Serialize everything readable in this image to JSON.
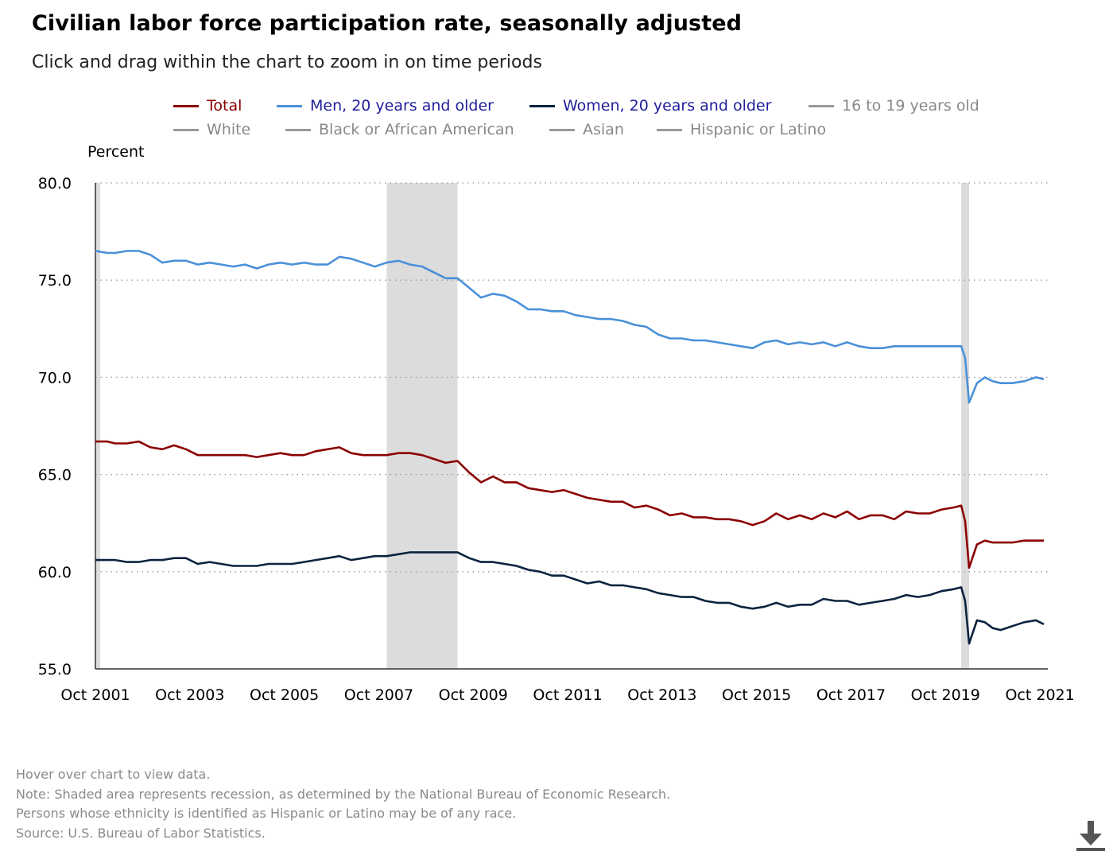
{
  "title": "Civilian labor force participation rate, seasonally adjusted",
  "subtitle": "Click and drag within the chart to zoom in on time periods",
  "legend": [
    {
      "label": "Total",
      "color": "#8b0000",
      "label_color": "#8b0000"
    },
    {
      "label": "Men, 20 years and older",
      "color": "#4a90d9",
      "label_color": "#1f1f9a"
    },
    {
      "label": "Women, 20 years and older",
      "color": "#0b2340",
      "label_color": "#1f1f9a"
    },
    {
      "label": "16 to 19 years old",
      "color": "#999999",
      "label_color": "#888888"
    },
    {
      "label": "White",
      "color": "#999999",
      "label_color": "#888888"
    },
    {
      "label": "Black or African American",
      "color": "#999999",
      "label_color": "#888888"
    },
    {
      "label": "Asian",
      "color": "#999999",
      "label_color": "#888888"
    },
    {
      "label": "Hispanic or Latino",
      "color": "#999999",
      "label_color": "#888888"
    }
  ],
  "notes": [
    "Hover over chart to view data.",
    "Note: Shaded area represents recession, as determined by the National Bureau of Economic Research.",
    "Persons whose ethnicity is identified as Hispanic or Latino may be of any race.",
    "Source: U.S. Bureau of Labor Statistics."
  ],
  "download_icon": "download-icon",
  "chart_data": {
    "type": "line",
    "title": "Civilian labor force participation rate, seasonally adjusted",
    "xlabel": "",
    "ylabel": "Percent",
    "xlim": [
      "2001-10",
      "2021-12"
    ],
    "ylim": [
      55.0,
      80.0
    ],
    "yticks": [
      55.0,
      60.0,
      65.0,
      70.0,
      75.0,
      80.0
    ],
    "ytick_labels": [
      "55.0",
      "60.0",
      "65.0",
      "70.0",
      "75.0",
      "80.0"
    ],
    "xticks": [
      "2001-10",
      "2003-10",
      "2005-10",
      "2007-10",
      "2009-10",
      "2011-10",
      "2013-10",
      "2015-10",
      "2017-10",
      "2019-10",
      "2021-10"
    ],
    "xtick_labels": [
      "Oct 2001",
      "Oct 2003",
      "Oct 2005",
      "Oct 2007",
      "Oct 2009",
      "Oct 2011",
      "Oct 2013",
      "Oct 2015",
      "Oct 2017",
      "Oct 2019",
      "Oct 2021"
    ],
    "grid": "horizontal dotted",
    "legend_position": "top",
    "recessions": [
      {
        "start": "2001-10",
        "end": "2001-11"
      },
      {
        "start": "2007-12",
        "end": "2009-06"
      },
      {
        "start": "2020-02",
        "end": "2020-04"
      }
    ],
    "series": [
      {
        "name": "Total",
        "color": "#8b0000",
        "points": [
          [
            "2001-10",
            66.7
          ],
          [
            "2002-01",
            66.7
          ],
          [
            "2002-03",
            66.6
          ],
          [
            "2002-06",
            66.6
          ],
          [
            "2002-09",
            66.7
          ],
          [
            "2002-12",
            66.4
          ],
          [
            "2003-03",
            66.3
          ],
          [
            "2003-06",
            66.5
          ],
          [
            "2003-09",
            66.3
          ],
          [
            "2003-12",
            66.0
          ],
          [
            "2004-03",
            66.0
          ],
          [
            "2004-06",
            66.0
          ],
          [
            "2004-09",
            66.0
          ],
          [
            "2004-12",
            66.0
          ],
          [
            "2005-03",
            65.9
          ],
          [
            "2005-06",
            66.0
          ],
          [
            "2005-09",
            66.1
          ],
          [
            "2005-12",
            66.0
          ],
          [
            "2006-03",
            66.0
          ],
          [
            "2006-06",
            66.2
          ],
          [
            "2006-09",
            66.3
          ],
          [
            "2006-12",
            66.4
          ],
          [
            "2007-03",
            66.1
          ],
          [
            "2007-06",
            66.0
          ],
          [
            "2007-09",
            66.0
          ],
          [
            "2007-12",
            66.0
          ],
          [
            "2008-03",
            66.1
          ],
          [
            "2008-06",
            66.1
          ],
          [
            "2008-09",
            66.0
          ],
          [
            "2008-12",
            65.8
          ],
          [
            "2009-03",
            65.6
          ],
          [
            "2009-06",
            65.7
          ],
          [
            "2009-09",
            65.1
          ],
          [
            "2009-12",
            64.6
          ],
          [
            "2010-03",
            64.9
          ],
          [
            "2010-06",
            64.6
          ],
          [
            "2010-09",
            64.6
          ],
          [
            "2010-12",
            64.3
          ],
          [
            "2011-03",
            64.2
          ],
          [
            "2011-06",
            64.1
          ],
          [
            "2011-09",
            64.2
          ],
          [
            "2011-12",
            64.0
          ],
          [
            "2012-03",
            63.8
          ],
          [
            "2012-06",
            63.7
          ],
          [
            "2012-09",
            63.6
          ],
          [
            "2012-12",
            63.6
          ],
          [
            "2013-03",
            63.3
          ],
          [
            "2013-06",
            63.4
          ],
          [
            "2013-09",
            63.2
          ],
          [
            "2013-12",
            62.9
          ],
          [
            "2014-03",
            63.0
          ],
          [
            "2014-06",
            62.8
          ],
          [
            "2014-09",
            62.8
          ],
          [
            "2014-12",
            62.7
          ],
          [
            "2015-03",
            62.7
          ],
          [
            "2015-06",
            62.6
          ],
          [
            "2015-09",
            62.4
          ],
          [
            "2015-12",
            62.6
          ],
          [
            "2016-03",
            63.0
          ],
          [
            "2016-06",
            62.7
          ],
          [
            "2016-09",
            62.9
          ],
          [
            "2016-12",
            62.7
          ],
          [
            "2017-03",
            63.0
          ],
          [
            "2017-06",
            62.8
          ],
          [
            "2017-09",
            63.1
          ],
          [
            "2017-12",
            62.7
          ],
          [
            "2018-03",
            62.9
          ],
          [
            "2018-06",
            62.9
          ],
          [
            "2018-09",
            62.7
          ],
          [
            "2018-12",
            63.1
          ],
          [
            "2019-03",
            63.0
          ],
          [
            "2019-06",
            63.0
          ],
          [
            "2019-09",
            63.2
          ],
          [
            "2019-12",
            63.3
          ],
          [
            "2020-02",
            63.4
          ],
          [
            "2020-03",
            62.6
          ],
          [
            "2020-04",
            60.2
          ],
          [
            "2020-06",
            61.4
          ],
          [
            "2020-08",
            61.6
          ],
          [
            "2020-10",
            61.5
          ],
          [
            "2020-12",
            61.5
          ],
          [
            "2021-03",
            61.5
          ],
          [
            "2021-06",
            61.6
          ],
          [
            "2021-09",
            61.6
          ],
          [
            "2021-11",
            61.6
          ]
        ]
      },
      {
        "name": "Men, 20 years and older",
        "color": "#4a90d9",
        "points": [
          [
            "2001-10",
            76.5
          ],
          [
            "2002-01",
            76.4
          ],
          [
            "2002-03",
            76.4
          ],
          [
            "2002-06",
            76.5
          ],
          [
            "2002-09",
            76.5
          ],
          [
            "2002-12",
            76.3
          ],
          [
            "2003-03",
            75.9
          ],
          [
            "2003-06",
            76.0
          ],
          [
            "2003-09",
            76.0
          ],
          [
            "2003-12",
            75.8
          ],
          [
            "2004-03",
            75.9
          ],
          [
            "2004-06",
            75.8
          ],
          [
            "2004-09",
            75.7
          ],
          [
            "2004-12",
            75.8
          ],
          [
            "2005-03",
            75.6
          ],
          [
            "2005-06",
            75.8
          ],
          [
            "2005-09",
            75.9
          ],
          [
            "2005-12",
            75.8
          ],
          [
            "2006-03",
            75.9
          ],
          [
            "2006-06",
            75.8
          ],
          [
            "2006-09",
            75.8
          ],
          [
            "2006-12",
            76.2
          ],
          [
            "2007-03",
            76.1
          ],
          [
            "2007-06",
            75.9
          ],
          [
            "2007-09",
            75.7
          ],
          [
            "2007-12",
            75.9
          ],
          [
            "2008-03",
            76.0
          ],
          [
            "2008-06",
            75.8
          ],
          [
            "2008-09",
            75.7
          ],
          [
            "2008-12",
            75.4
          ],
          [
            "2009-03",
            75.1
          ],
          [
            "2009-06",
            75.1
          ],
          [
            "2009-09",
            74.6
          ],
          [
            "2009-12",
            74.1
          ],
          [
            "2010-03",
            74.3
          ],
          [
            "2010-06",
            74.2
          ],
          [
            "2010-09",
            73.9
          ],
          [
            "2010-12",
            73.5
          ],
          [
            "2011-03",
            73.5
          ],
          [
            "2011-06",
            73.4
          ],
          [
            "2011-09",
            73.4
          ],
          [
            "2011-12",
            73.2
          ],
          [
            "2012-03",
            73.1
          ],
          [
            "2012-06",
            73.0
          ],
          [
            "2012-09",
            73.0
          ],
          [
            "2012-12",
            72.9
          ],
          [
            "2013-03",
            72.7
          ],
          [
            "2013-06",
            72.6
          ],
          [
            "2013-09",
            72.2
          ],
          [
            "2013-12",
            72.0
          ],
          [
            "2014-03",
            72.0
          ],
          [
            "2014-06",
            71.9
          ],
          [
            "2014-09",
            71.9
          ],
          [
            "2014-12",
            71.8
          ],
          [
            "2015-03",
            71.7
          ],
          [
            "2015-06",
            71.6
          ],
          [
            "2015-09",
            71.5
          ],
          [
            "2015-12",
            71.8
          ],
          [
            "2016-03",
            71.9
          ],
          [
            "2016-06",
            71.7
          ],
          [
            "2016-09",
            71.8
          ],
          [
            "2016-12",
            71.7
          ],
          [
            "2017-03",
            71.8
          ],
          [
            "2017-06",
            71.6
          ],
          [
            "2017-09",
            71.8
          ],
          [
            "2017-12",
            71.6
          ],
          [
            "2018-03",
            71.5
          ],
          [
            "2018-06",
            71.5
          ],
          [
            "2018-09",
            71.6
          ],
          [
            "2018-12",
            71.6
          ],
          [
            "2019-03",
            71.6
          ],
          [
            "2019-06",
            71.6
          ],
          [
            "2019-09",
            71.6
          ],
          [
            "2019-12",
            71.6
          ],
          [
            "2020-02",
            71.6
          ],
          [
            "2020-03",
            71.0
          ],
          [
            "2020-04",
            68.7
          ],
          [
            "2020-06",
            69.7
          ],
          [
            "2020-08",
            70.0
          ],
          [
            "2020-10",
            69.8
          ],
          [
            "2020-12",
            69.7
          ],
          [
            "2021-03",
            69.7
          ],
          [
            "2021-06",
            69.8
          ],
          [
            "2021-09",
            70.0
          ],
          [
            "2021-11",
            69.9
          ]
        ]
      },
      {
        "name": "Women, 20 years and older",
        "color": "#0b2340",
        "points": [
          [
            "2001-10",
            60.6
          ],
          [
            "2002-01",
            60.6
          ],
          [
            "2002-03",
            60.6
          ],
          [
            "2002-06",
            60.5
          ],
          [
            "2002-09",
            60.5
          ],
          [
            "2002-12",
            60.6
          ],
          [
            "2003-03",
            60.6
          ],
          [
            "2003-06",
            60.7
          ],
          [
            "2003-09",
            60.7
          ],
          [
            "2003-12",
            60.4
          ],
          [
            "2004-03",
            60.5
          ],
          [
            "2004-06",
            60.4
          ],
          [
            "2004-09",
            60.3
          ],
          [
            "2004-12",
            60.3
          ],
          [
            "2005-03",
            60.3
          ],
          [
            "2005-06",
            60.4
          ],
          [
            "2005-09",
            60.4
          ],
          [
            "2005-12",
            60.4
          ],
          [
            "2006-03",
            60.5
          ],
          [
            "2006-06",
            60.6
          ],
          [
            "2006-09",
            60.7
          ],
          [
            "2006-12",
            60.8
          ],
          [
            "2007-03",
            60.6
          ],
          [
            "2007-06",
            60.7
          ],
          [
            "2007-09",
            60.8
          ],
          [
            "2007-12",
            60.8
          ],
          [
            "2008-03",
            60.9
          ],
          [
            "2008-06",
            61.0
          ],
          [
            "2008-09",
            61.0
          ],
          [
            "2008-12",
            61.0
          ],
          [
            "2009-03",
            61.0
          ],
          [
            "2009-06",
            61.0
          ],
          [
            "2009-09",
            60.7
          ],
          [
            "2009-12",
            60.5
          ],
          [
            "2010-03",
            60.5
          ],
          [
            "2010-06",
            60.4
          ],
          [
            "2010-09",
            60.3
          ],
          [
            "2010-12",
            60.1
          ],
          [
            "2011-03",
            60.0
          ],
          [
            "2011-06",
            59.8
          ],
          [
            "2011-09",
            59.8
          ],
          [
            "2011-12",
            59.6
          ],
          [
            "2012-03",
            59.4
          ],
          [
            "2012-06",
            59.5
          ],
          [
            "2012-09",
            59.3
          ],
          [
            "2012-12",
            59.3
          ],
          [
            "2013-03",
            59.2
          ],
          [
            "2013-06",
            59.1
          ],
          [
            "2013-09",
            58.9
          ],
          [
            "2013-12",
            58.8
          ],
          [
            "2014-03",
            58.7
          ],
          [
            "2014-06",
            58.7
          ],
          [
            "2014-09",
            58.5
          ],
          [
            "2014-12",
            58.4
          ],
          [
            "2015-03",
            58.4
          ],
          [
            "2015-06",
            58.2
          ],
          [
            "2015-09",
            58.1
          ],
          [
            "2015-12",
            58.2
          ],
          [
            "2016-03",
            58.4
          ],
          [
            "2016-06",
            58.2
          ],
          [
            "2016-09",
            58.3
          ],
          [
            "2016-12",
            58.3
          ],
          [
            "2017-03",
            58.6
          ],
          [
            "2017-06",
            58.5
          ],
          [
            "2017-09",
            58.5
          ],
          [
            "2017-12",
            58.3
          ],
          [
            "2018-03",
            58.4
          ],
          [
            "2018-06",
            58.5
          ],
          [
            "2018-09",
            58.6
          ],
          [
            "2018-12",
            58.8
          ],
          [
            "2019-03",
            58.7
          ],
          [
            "2019-06",
            58.8
          ],
          [
            "2019-09",
            59.0
          ],
          [
            "2019-12",
            59.1
          ],
          [
            "2020-02",
            59.2
          ],
          [
            "2020-03",
            58.5
          ],
          [
            "2020-04",
            56.3
          ],
          [
            "2020-06",
            57.5
          ],
          [
            "2020-08",
            57.4
          ],
          [
            "2020-10",
            57.1
          ],
          [
            "2020-12",
            57.0
          ],
          [
            "2021-03",
            57.2
          ],
          [
            "2021-06",
            57.4
          ],
          [
            "2021-09",
            57.5
          ],
          [
            "2021-11",
            57.3
          ]
        ]
      }
    ]
  }
}
